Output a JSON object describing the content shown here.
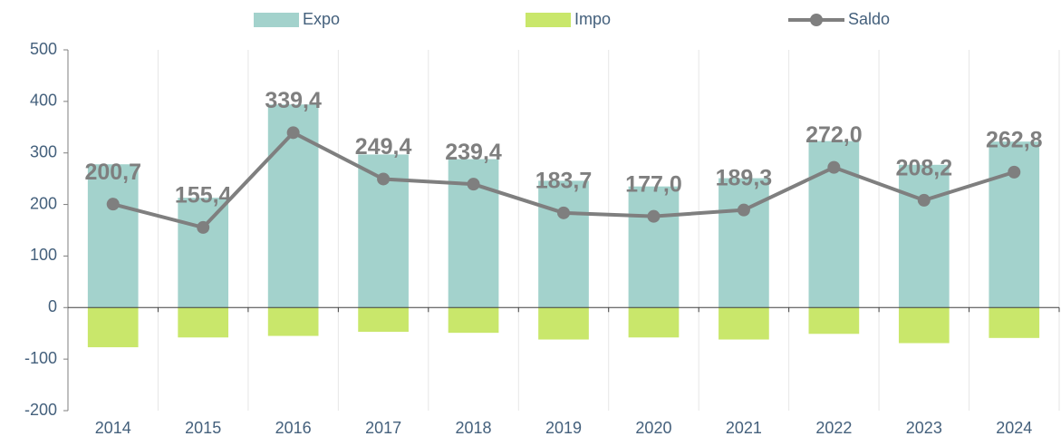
{
  "chart_data": {
    "type": "bar_line",
    "categories": [
      "2014",
      "2015",
      "2016",
      "2017",
      "2018",
      "2019",
      "2020",
      "2021",
      "2022",
      "2023",
      "2024"
    ],
    "series": [
      {
        "name": "Expo",
        "type": "bar",
        "color": "#a3d2cc",
        "values": [
          278,
          213,
          394,
          297,
          288,
          246,
          235,
          251,
          323,
          277,
          322
        ]
      },
      {
        "name": "Impo",
        "type": "bar",
        "color": "#c9e76b",
        "values": [
          -77,
          -58,
          -55,
          -47,
          -49,
          -62,
          -58,
          -62,
          -51,
          -69,
          -59
        ]
      },
      {
        "name": "Saldo",
        "type": "line",
        "color": "#7f7f7f",
        "values": [
          200.7,
          155.4,
          339.4,
          249.4,
          239.4,
          183.7,
          177.0,
          189.3,
          272.0,
          208.2,
          262.8
        ],
        "value_labels": [
          "200,7",
          "155,4",
          "339,4",
          "249,4",
          "239,4",
          "183,7",
          "177,0",
          "189,3",
          "272,0",
          "208,2",
          "262,8"
        ]
      }
    ],
    "ylim": [
      -200,
      500
    ],
    "yticks": [
      -200,
      -100,
      0,
      100,
      200,
      300,
      400,
      500
    ],
    "grid": true,
    "legend": "top"
  }
}
